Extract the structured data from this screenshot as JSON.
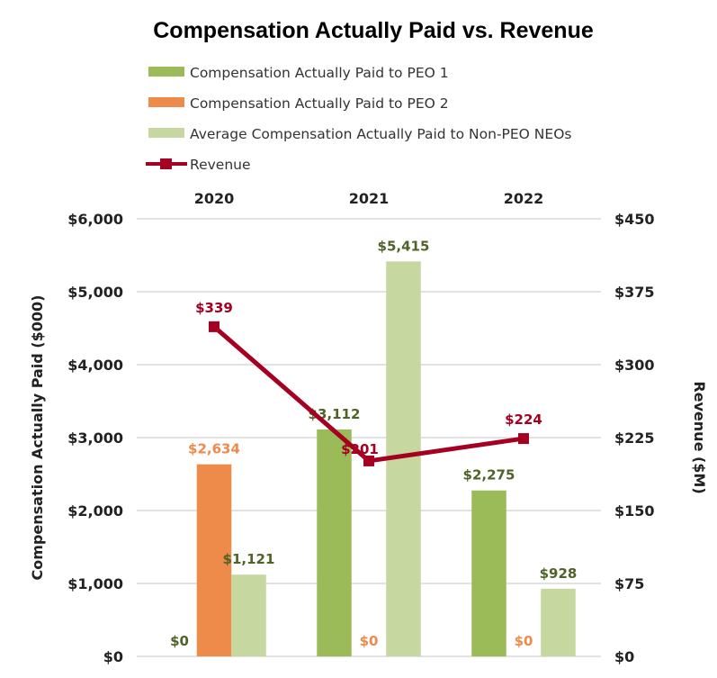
{
  "chart_data": {
    "type": "bar",
    "title": "Compensation Actually Paid vs. Revenue",
    "categories": [
      "2020",
      "2021",
      "2022"
    ],
    "series": [
      {
        "name": "Compensation Actually Paid to PEO 1",
        "type": "bar",
        "axis": "left",
        "values": [
          0,
          3112,
          2275
        ],
        "labels": [
          "$0",
          "$3,112",
          "$2,275"
        ],
        "color": "#9BBB59",
        "label_color": "#4F6228"
      },
      {
        "name": "Compensation Actually Paid to PEO 2",
        "type": "bar",
        "axis": "left",
        "values": [
          2634,
          0,
          0
        ],
        "labels": [
          "$2,634",
          "$0",
          "$0"
        ],
        "color": "#EE8A4A",
        "label_color": "#EE8A4A"
      },
      {
        "name": "Average Compensation Actually Paid to Non-PEO NEOs",
        "type": "bar",
        "axis": "left",
        "values": [
          1121,
          5415,
          928
        ],
        "labels": [
          "$1,121",
          "$5,415",
          "$928"
        ],
        "color": "#C6D7A0",
        "label_color": "#4F6228"
      },
      {
        "name": "Revenue",
        "type": "line",
        "axis": "right",
        "values": [
          339,
          201,
          224
        ],
        "labels": [
          "$339",
          "$201",
          "$224"
        ],
        "color": "#A50021",
        "label_color": "#A50021"
      }
    ],
    "ylabel": "Compensation Actually Paid ($000)",
    "y2label": "Revenue ($M)",
    "ylim": [
      0,
      6000
    ],
    "y2lim": [
      0,
      450
    ],
    "yticks": [
      "$0",
      "$1,000",
      "$2,000",
      "$3,000",
      "$4,000",
      "$5,000",
      "$6,000"
    ],
    "y2ticks": [
      "$0",
      "$75",
      "$150",
      "$225",
      "$300",
      "$375",
      "$450"
    ],
    "grid": true,
    "legend_position": "top",
    "x_axis_position": "top"
  }
}
